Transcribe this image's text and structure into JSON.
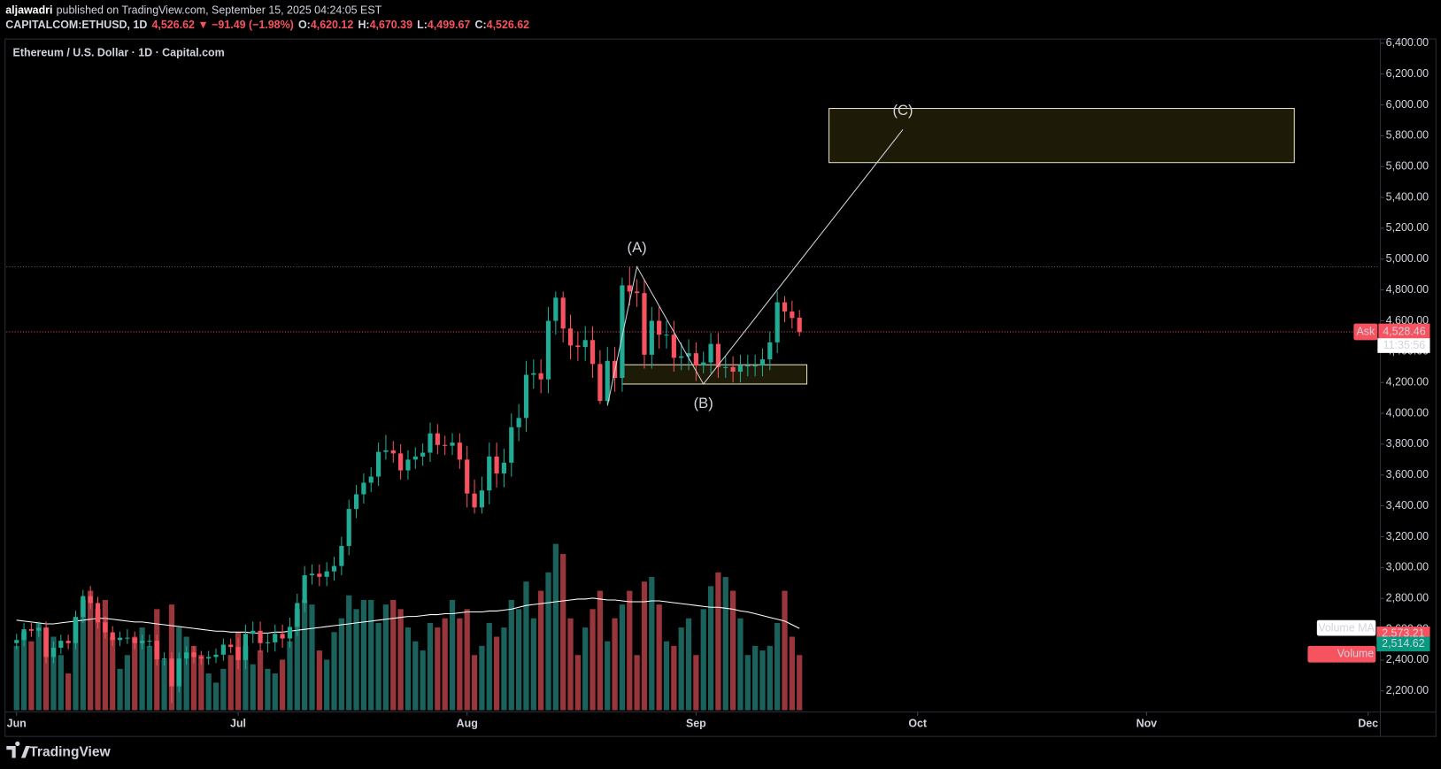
{
  "header": {
    "author": "aljawadri",
    "published": "published on TradingView.com, September 15, 2025 04:24:05 EST",
    "symbol": "CAPITALCOM:ETHUSD, 1D",
    "change": "4,526.62 ▼ −91.49 (−1.98%)",
    "ohlc": [
      {
        "label": "O:",
        "value": "4,620.12"
      },
      {
        "label": "H:",
        "value": "4,670.39"
      },
      {
        "label": "L:",
        "value": "4,499.67"
      },
      {
        "label": "C:",
        "value": "4,526.62"
      }
    ]
  },
  "footer": {
    "brand": "TradingView"
  },
  "chart_data": {
    "type": "candlestick",
    "title": "Ethereum / U.S. Dollar · 1D · Capital.com",
    "up_color": "#22ab94",
    "down_color": "#f7525f",
    "volume_up_color": "#1b625c",
    "volume_down_color": "#99363c",
    "volume_ma_color": "#ffffff",
    "xlim": [
      -1.37,
      184.4
    ],
    "xticks": [
      {
        "value": 0,
        "label": "Jun"
      },
      {
        "value": 30,
        "label": "Jul"
      },
      {
        "value": 61,
        "label": "Aug"
      },
      {
        "value": 92,
        "label": "Sep"
      },
      {
        "value": 122,
        "label": "Oct"
      },
      {
        "value": 153,
        "label": "Nov"
      },
      {
        "value": 183,
        "label": "Dec"
      }
    ],
    "ylim": [
      2075,
      6424
    ],
    "yticks": [
      {
        "value": 2200,
        "label": "2,200.00"
      },
      {
        "value": 2400,
        "label": "2,400.00"
      },
      {
        "value": 2600,
        "label": "2,600.00"
      },
      {
        "value": 2800,
        "label": "2,800.00"
      },
      {
        "value": 3000,
        "label": "3,000.00"
      },
      {
        "value": 3200,
        "label": "3,200.00"
      },
      {
        "value": 3400,
        "label": "3,400.00"
      },
      {
        "value": 3600,
        "label": "3,600.00"
      },
      {
        "value": 3800,
        "label": "3,800.00"
      },
      {
        "value": 4000,
        "label": "4,000.00"
      },
      {
        "value": 4200,
        "label": "4,200.00"
      },
      {
        "value": 4400,
        "label": "4,400.00"
      },
      {
        "value": 4600,
        "label": "4,600.00"
      },
      {
        "value": 4800,
        "label": "4,800.00"
      },
      {
        "value": 5000,
        "label": "5,000.00"
      },
      {
        "value": 5200,
        "label": "5,200.00"
      },
      {
        "value": 5400,
        "label": "5,400.00"
      },
      {
        "value": 5600,
        "label": "5,600.00"
      },
      {
        "value": 5800,
        "label": "5,800.00"
      },
      {
        "value": 6000,
        "label": "6,000.00"
      },
      {
        "value": 6200,
        "label": "6,200.00"
      },
      {
        "value": 6400,
        "label": "6,400.00"
      }
    ],
    "grid": false,
    "volume_lim": [
      0,
      300
    ],
    "x": [
      0,
      1,
      2,
      3,
      4,
      5,
      6,
      7,
      8,
      9,
      10,
      11,
      12,
      13,
      14,
      15,
      16,
      17,
      18,
      19,
      20,
      21,
      22,
      23,
      24,
      25,
      26,
      27,
      28,
      29,
      30,
      31,
      32,
      33,
      34,
      35,
      36,
      37,
      38,
      39,
      40,
      41,
      42,
      43,
      44,
      45,
      46,
      47,
      48,
      49,
      50,
      51,
      52,
      53,
      54,
      55,
      56,
      57,
      58,
      59,
      60,
      61,
      62,
      63,
      64,
      65,
      66,
      67,
      68,
      69,
      70,
      71,
      72,
      73,
      74,
      75,
      76,
      77,
      78,
      79,
      80,
      81,
      82,
      83,
      84,
      85,
      86,
      87,
      88,
      89,
      90,
      91,
      92,
      93,
      94,
      95,
      96,
      97,
      98,
      99,
      100,
      101,
      102,
      103,
      104,
      105,
      106
    ],
    "open": [
      2510,
      2530,
      2600,
      2590,
      2610,
      2420,
      2480,
      2525,
      2510,
      2680,
      2815,
      2770,
      2645,
      2580,
      2530,
      2545,
      2545,
      2510,
      2525,
      2525,
      2405,
      2410,
      2230,
      2410,
      2450,
      2420,
      2410,
      2420,
      2435,
      2500,
      2485,
      2400,
      2570,
      2590,
      2510,
      2515,
      2570,
      2540,
      2615,
      2770,
      2950,
      2960,
      2940,
      2975,
      3010,
      3140,
      3380,
      3475,
      3550,
      3590,
      3750,
      3760,
      3740,
      3630,
      3700,
      3720,
      3745,
      3870,
      3795,
      3790,
      3810,
      3700,
      3480,
      3390,
      3500,
      3720,
      3610,
      3680,
      3910,
      3970,
      4250,
      4260,
      4220,
      4600,
      4750,
      4550,
      4440,
      4430,
      4475,
      4320,
      4080,
      4340,
      4230,
      4830,
      4790,
      4780,
      4380,
      4600,
      4510,
      4510,
      4360,
      4370,
      4390,
      4310,
      4330,
      4450,
      4300,
      4300,
      4270,
      4310,
      4310,
      4310,
      4350,
      4460,
      4720,
      4660,
      4620.12
    ],
    "high": [
      2570,
      2640,
      2640,
      2650,
      2650,
      2520,
      2565,
      2565,
      2720,
      2855,
      2880,
      2810,
      2685,
      2620,
      2585,
      2600,
      2585,
      2565,
      2565,
      2565,
      2450,
      2450,
      2450,
      2490,
      2490,
      2460,
      2460,
      2475,
      2540,
      2540,
      2545,
      2630,
      2650,
      2650,
      2575,
      2630,
      2630,
      2675,
      2830,
      3010,
      3020,
      3020,
      3035,
      3070,
      3200,
      3440,
      3535,
      3610,
      3650,
      3810,
      3860,
      3820,
      3800,
      3760,
      3780,
      3805,
      3940,
      3930,
      3855,
      3870,
      3870,
      3790,
      3570,
      3590,
      3810,
      3810,
      3770,
      4000,
      4060,
      4340,
      4350,
      4350,
      4690,
      4790,
      4790,
      4640,
      4530,
      4565,
      4565,
      4410,
      4430,
      4430,
      4880,
      4950,
      4870,
      4870,
      4690,
      4690,
      4600,
      4600,
      4460,
      4480,
      4460,
      4400,
      4520,
      4520,
      4370,
      4370,
      4380,
      4380,
      4380,
      4420,
      4530,
      4790,
      4760,
      4730,
      4670.39
    ],
    "low": [
      2470,
      2490,
      2550,
      2550,
      2380,
      2380,
      2440,
      2470,
      2470,
      2640,
      2730,
      2605,
      2540,
      2490,
      2490,
      2505,
      2470,
      2470,
      2485,
      2365,
      2365,
      2120,
      2190,
      2370,
      2380,
      2370,
      2370,
      2380,
      2395,
      2445,
      2340,
      2340,
      2510,
      2450,
      2450,
      2455,
      2480,
      2480,
      2555,
      2710,
      2890,
      2880,
      2880,
      2915,
      2950,
      3080,
      3320,
      3415,
      3490,
      3530,
      3700,
      3680,
      3570,
      3570,
      3640,
      3660,
      3685,
      3735,
      3730,
      3730,
      3640,
      3390,
      3350,
      3350,
      3410,
      3520,
      3520,
      3590,
      3820,
      3880,
      4160,
      4130,
      4130,
      4510,
      4460,
      4350,
      4340,
      4340,
      4230,
      4060,
      4060,
      4140,
      4140,
      4700,
      4690,
      4290,
      4290,
      4420,
      4420,
      4270,
      4280,
      4280,
      4210,
      4260,
      4260,
      4230,
      4230,
      4200,
      4200,
      4240,
      4240,
      4240,
      4280,
      4390,
      4590,
      4550,
      4499.67
    ],
    "close": [
      2530,
      2600,
      2590,
      2610,
      2420,
      2480,
      2525,
      2510,
      2680,
      2815,
      2770,
      2645,
      2580,
      2530,
      2545,
      2545,
      2510,
      2525,
      2525,
      2405,
      2410,
      2230,
      2410,
      2450,
      2420,
      2410,
      2420,
      2435,
      2500,
      2485,
      2400,
      2570,
      2590,
      2510,
      2515,
      2570,
      2540,
      2615,
      2770,
      2950,
      2960,
      2940,
      2975,
      3010,
      3140,
      3380,
      3475,
      3550,
      3590,
      3750,
      3760,
      3740,
      3630,
      3700,
      3720,
      3745,
      3870,
      3795,
      3790,
      3810,
      3700,
      3480,
      3390,
      3500,
      3720,
      3610,
      3680,
      3910,
      3970,
      4250,
      4260,
      4220,
      4600,
      4750,
      4550,
      4440,
      4430,
      4475,
      4320,
      4080,
      4340,
      4230,
      4830,
      4790,
      4780,
      4380,
      4600,
      4510,
      4510,
      4360,
      4370,
      4390,
      4310,
      4330,
      4450,
      4300,
      4300,
      4270,
      4310,
      4310,
      4310,
      4350,
      4460,
      4720,
      4660,
      4618.11,
      4526.62
    ],
    "volume": [
      70,
      85,
      75,
      95,
      90,
      80,
      60,
      40,
      100,
      120,
      130,
      110,
      120,
      80,
      45,
      60,
      80,
      90,
      70,
      110,
      55,
      115,
      90,
      80,
      70,
      60,
      40,
      30,
      45,
      60,
      85,
      70,
      50,
      65,
      45,
      40,
      55,
      75,
      110,
      120,
      115,
      65,
      55,
      85,
      100,
      125,
      110,
      120,
      120,
      95,
      115,
      120,
      110,
      90,
      75,
      65,
      95,
      90,
      100,
      120,
      100,
      110,
      60,
      70,
      95,
      80,
      90,
      120,
      110,
      140,
      100,
      130,
      150,
      181,
      170,
      100,
      60,
      90,
      110,
      130,
      75,
      100,
      115,
      130,
      60,
      140,
      145,
      115,
      75,
      70,
      90,
      100,
      60,
      110,
      135,
      150,
      145,
      130,
      100,
      60,
      70,
      65,
      70,
      95,
      130,
      80,
      60
    ],
    "volume_ma": [
      98,
      97,
      96,
      95,
      94,
      94,
      95,
      96,
      97,
      98,
      99,
      100,
      100,
      99,
      98,
      97,
      96,
      96,
      95,
      94,
      93,
      92,
      91,
      90,
      89,
      88,
      87,
      86,
      86,
      85,
      85,
      85,
      84,
      84,
      84,
      85,
      85,
      86,
      87,
      88,
      89,
      90,
      91,
      92,
      93,
      94,
      95,
      96,
      97,
      98,
      99,
      100,
      101,
      102,
      102,
      103,
      104,
      104,
      105,
      105,
      106,
      107,
      107,
      107,
      108,
      108,
      109,
      110,
      112,
      114,
      115,
      116,
      117,
      118,
      119,
      120,
      121,
      121,
      122,
      121,
      120,
      120,
      119,
      118,
      118,
      118,
      119,
      119,
      118,
      117,
      116,
      115,
      114,
      113,
      112,
      112,
      111,
      110,
      108,
      107,
      105,
      103,
      101,
      99,
      97,
      93,
      89
    ],
    "wave": [
      {
        "x": 80,
        "y": 4050
      },
      {
        "x": 84,
        "y": 4950,
        "label": "(A)"
      },
      {
        "x": 93,
        "y": 4190,
        "label": "(B)"
      },
      {
        "x": 120,
        "y": 5840,
        "label": "(C)"
      }
    ],
    "zones": [
      {
        "x0": 82,
        "x1": 107,
        "y0": 4190,
        "y1": 4315,
        "color": "#1e1a08"
      },
      {
        "x0": 110,
        "x1": 173,
        "y0": 5626,
        "y1": 5977,
        "color": "#1e1a08"
      }
    ],
    "levels": [
      4950
    ],
    "ask": {
      "label": "Ask",
      "value": 4528.46,
      "value_label": "4,528.46",
      "countdown": "11:35:56"
    },
    "volume_labels": {
      "ma_label": "Volume MA",
      "ma_value": "2,573.21",
      "volume_value": "2,514.62",
      "volume_label": "Volume"
    }
  }
}
